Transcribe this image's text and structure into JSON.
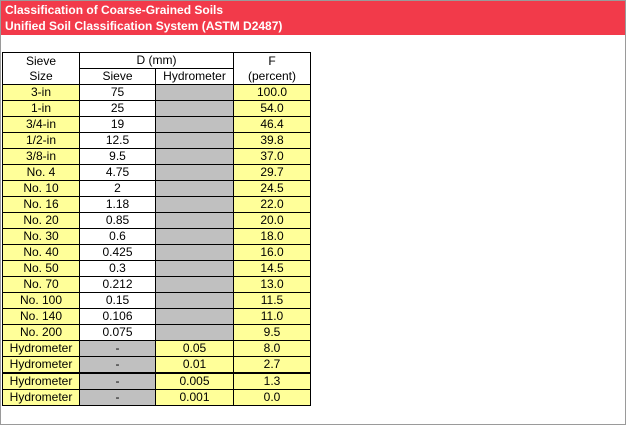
{
  "title": {
    "line1": "Classification of Coarse-Grained Soils",
    "line2": "Unified Soil Classification System (ASTM D2487)"
  },
  "headers": {
    "sieve_size_1": "Sieve",
    "sieve_size_2": "Size",
    "d_mm": "D (mm)",
    "sieve": "Sieve",
    "hydrometer": "Hydrometer",
    "f": "F",
    "percent": "(percent)"
  },
  "rows": [
    {
      "size": "3-in",
      "sieve": "75",
      "hydrometer": "",
      "f": "100.0"
    },
    {
      "size": "1-in",
      "sieve": "25",
      "hydrometer": "",
      "f": "54.0"
    },
    {
      "size": "3/4-in",
      "sieve": "19",
      "hydrometer": "",
      "f": "46.4"
    },
    {
      "size": "1/2-in",
      "sieve": "12.5",
      "hydrometer": "",
      "f": "39.8"
    },
    {
      "size": "3/8-in",
      "sieve": "9.5",
      "hydrometer": "",
      "f": "37.0"
    },
    {
      "size": "No. 4",
      "sieve": "4.75",
      "hydrometer": "",
      "f": "29.7"
    },
    {
      "size": "No. 10",
      "sieve": "2",
      "hydrometer": "",
      "f": "24.5"
    },
    {
      "size": "No. 16",
      "sieve": "1.18",
      "hydrometer": "",
      "f": "22.0"
    },
    {
      "size": "No. 20",
      "sieve": "0.85",
      "hydrometer": "",
      "f": "20.0"
    },
    {
      "size": "No. 30",
      "sieve": "0.6",
      "hydrometer": "",
      "f": "18.0"
    },
    {
      "size": "No. 40",
      "sieve": "0.425",
      "hydrometer": "",
      "f": "16.0"
    },
    {
      "size": "No. 50",
      "sieve": "0.3",
      "hydrometer": "",
      "f": "14.5"
    },
    {
      "size": "No. 70",
      "sieve": "0.212",
      "hydrometer": "",
      "f": "13.0"
    },
    {
      "size": "No. 100",
      "sieve": "0.15",
      "hydrometer": "",
      "f": "11.5"
    },
    {
      "size": "No. 140",
      "sieve": "0.106",
      "hydrometer": "",
      "f": "11.0"
    },
    {
      "size": "No. 200",
      "sieve": "0.075",
      "hydrometer": "",
      "f": "9.5"
    },
    {
      "size": "Hydrometer",
      "sieve": "-",
      "hydrometer": "0.05",
      "f": "8.0"
    },
    {
      "size": "Hydrometer",
      "sieve": "-",
      "hydrometer": "0.01",
      "f": "2.7"
    },
    {
      "size": "Hydrometer",
      "sieve": "-",
      "hydrometer": "0.005",
      "f": "1.3"
    },
    {
      "size": "Hydrometer",
      "sieve": "-",
      "hydrometer": "0.001",
      "f": "0.0"
    }
  ],
  "colors": {
    "title_bg": "#f23a4a",
    "input_yellow": "#ffff99",
    "disabled_gray": "#c0c0c0"
  }
}
